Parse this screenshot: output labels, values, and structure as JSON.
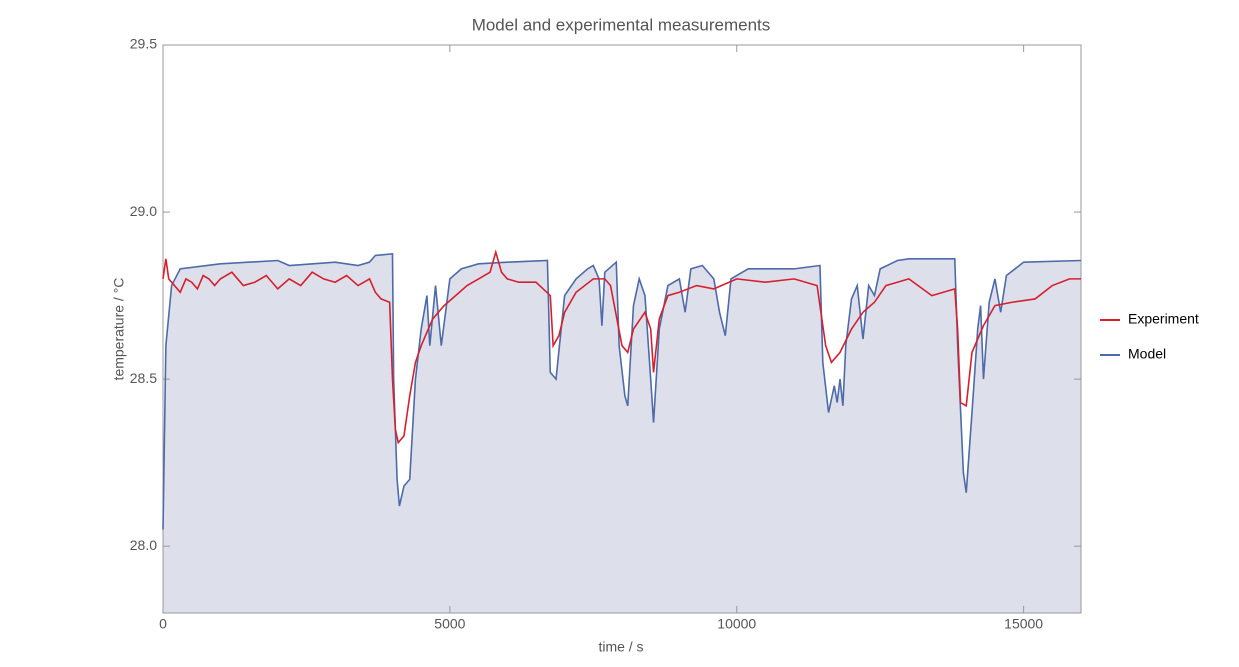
{
  "chart_data": {
    "type": "line",
    "title": "Model and experimental measurements",
    "x_label": "time / s",
    "y_label": "temperature / °C",
    "xlim": [
      0,
      16000
    ],
    "ylim": [
      27.8,
      29.5
    ],
    "xticks": [
      0,
      5000,
      10000,
      15000
    ],
    "yticks": [
      {
        "value": 28,
        "label": "28.0"
      },
      28.5,
      {
        "value": 29,
        "label": "29.0"
      },
      29.5
    ],
    "legend": "right",
    "fill_model": true,
    "fill_color": "#dde0eb",
    "series": [
      {
        "name": "Experiment",
        "color": "#d6202e",
        "x": [
          0,
          50,
          100,
          200,
          300,
          400,
          500,
          600,
          700,
          800,
          900,
          1000,
          1200,
          1400,
          1600,
          1800,
          2000,
          2200,
          2400,
          2600,
          2800,
          3000,
          3200,
          3400,
          3600,
          3700,
          3800,
          3950,
          4000,
          4050,
          4100,
          4200,
          4300,
          4400,
          4500,
          4700,
          4900,
          5100,
          5300,
          5500,
          5700,
          5800,
          5900,
          6000,
          6200,
          6500,
          6750,
          6800,
          6900,
          7000,
          7200,
          7500,
          7700,
          7800,
          8000,
          8100,
          8200,
          8400,
          8500,
          8550,
          8650,
          8800,
          9000,
          9300,
          9600,
          10000,
          10500,
          11000,
          11400,
          11550,
          11650,
          11800,
          12000,
          12200,
          12400,
          12600,
          13000,
          13400,
          13800,
          13850,
          13900,
          14000,
          14100,
          14300,
          14500,
          14800,
          15200,
          15500,
          15800,
          16000
        ],
        "values": [
          28.8,
          28.86,
          28.8,
          28.78,
          28.76,
          28.8,
          28.79,
          28.77,
          28.81,
          28.8,
          28.78,
          28.8,
          28.82,
          28.78,
          28.79,
          28.81,
          28.77,
          28.8,
          28.78,
          28.82,
          28.8,
          28.79,
          28.81,
          28.78,
          28.8,
          28.76,
          28.74,
          28.73,
          28.5,
          28.35,
          28.31,
          28.33,
          28.45,
          28.55,
          28.6,
          28.68,
          28.72,
          28.75,
          28.78,
          28.8,
          28.82,
          28.88,
          28.82,
          28.8,
          28.79,
          28.79,
          28.75,
          28.6,
          28.63,
          28.7,
          28.76,
          28.8,
          28.8,
          28.78,
          28.6,
          28.58,
          28.65,
          28.7,
          28.65,
          28.52,
          28.68,
          28.75,
          28.76,
          28.78,
          28.77,
          28.8,
          28.79,
          28.8,
          28.78,
          28.6,
          28.55,
          28.58,
          28.65,
          28.7,
          28.73,
          28.78,
          28.8,
          28.75,
          28.77,
          28.65,
          28.43,
          28.42,
          28.58,
          28.66,
          28.72,
          28.73,
          28.74,
          28.78,
          28.8,
          28.8
        ]
      },
      {
        "name": "Model",
        "color": "#4e6aa8",
        "x": [
          0,
          50,
          150,
          300,
          1000,
          2000,
          2200,
          3000,
          3400,
          3600,
          3700,
          4000,
          4020,
          4080,
          4120,
          4200,
          4300,
          4400,
          4500,
          4600,
          4650,
          4750,
          4850,
          5000,
          5200,
          5500,
          6000,
          6700,
          6750,
          6850,
          7000,
          7200,
          7400,
          7500,
          7600,
          7650,
          7700,
          7900,
          7950,
          8050,
          8100,
          8200,
          8300,
          8400,
          8500,
          8550,
          8650,
          8800,
          9000,
          9100,
          9200,
          9400,
          9600,
          9700,
          9800,
          9900,
          10200,
          11000,
          11450,
          11500,
          11600,
          11700,
          11750,
          11800,
          11850,
          11900,
          12000,
          12100,
          12200,
          12300,
          12400,
          12500,
          12800,
          13000,
          13800,
          13850,
          13950,
          14000,
          14100,
          14200,
          14250,
          14300,
          14400,
          14500,
          14600,
          14700,
          15000,
          16000
        ],
        "values": [
          28.05,
          28.6,
          28.78,
          28.83,
          28.845,
          28.855,
          28.84,
          28.85,
          28.84,
          28.85,
          28.87,
          28.875,
          28.5,
          28.2,
          28.12,
          28.18,
          28.2,
          28.5,
          28.65,
          28.75,
          28.6,
          28.78,
          28.6,
          28.8,
          28.83,
          28.845,
          28.85,
          28.855,
          28.52,
          28.5,
          28.75,
          28.8,
          28.83,
          28.84,
          28.8,
          28.66,
          28.82,
          28.85,
          28.6,
          28.45,
          28.42,
          28.72,
          28.8,
          28.75,
          28.5,
          28.37,
          28.65,
          28.78,
          28.8,
          28.7,
          28.83,
          28.84,
          28.8,
          28.7,
          28.63,
          28.8,
          28.83,
          28.83,
          28.84,
          28.55,
          28.4,
          28.48,
          28.43,
          28.5,
          28.42,
          28.6,
          28.74,
          28.78,
          28.62,
          28.78,
          28.75,
          28.83,
          28.855,
          28.86,
          28.86,
          28.6,
          28.22,
          28.16,
          28.4,
          28.65,
          28.72,
          28.5,
          28.73,
          28.8,
          28.7,
          28.81,
          28.85,
          28.855
        ]
      }
    ]
  }
}
